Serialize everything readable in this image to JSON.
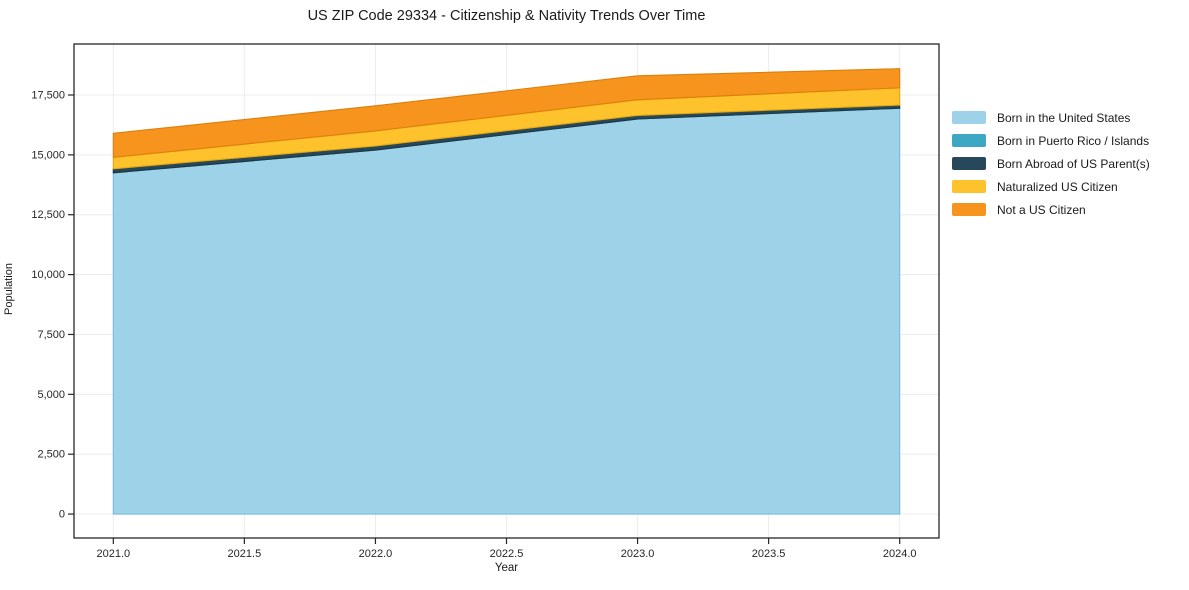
{
  "title": "US ZIP Code 29334 - Citizenship & Nativity Trends Over Time",
  "chart_data": {
    "type": "area",
    "stacked": true,
    "title": "US ZIP Code 29334 - Citizenship & Nativity Trends Over Time",
    "xlabel": "Year",
    "ylabel": "Population",
    "x": [
      2021,
      2022,
      2023,
      2024
    ],
    "series": [
      {
        "name": "Born in the United States",
        "color": "#9DD2E8",
        "edge": "#7BBCDA",
        "values": [
          14250,
          15200,
          16500,
          16950
        ]
      },
      {
        "name": "Born in Puerto Rico / Islands",
        "color": "#3EA8C4",
        "edge": "#2E8FA8",
        "values": [
          0,
          0,
          0,
          0
        ]
      },
      {
        "name": "Born Abroad of US Parent(s)",
        "color": "#27485A",
        "edge": "#1C3645",
        "values": [
          170,
          170,
          150,
          130
        ]
      },
      {
        "name": "Naturalized US Citizen",
        "color": "#FDC22C",
        "edge": "#E3A90F",
        "values": [
          480,
          630,
          650,
          720
        ]
      },
      {
        "name": "Not a US Citizen",
        "color": "#F6941E",
        "edge": "#DC7F0A",
        "values": [
          1000,
          1050,
          1000,
          800
        ]
      }
    ],
    "xlim": [
      2020.85,
      2024.15
    ],
    "ylim": [
      -1000,
      19630
    ],
    "xticks": {
      "values": [
        2021,
        2021.5,
        2022,
        2022.5,
        2023,
        2023.5,
        2024
      ],
      "labels": [
        "2021.0",
        "2021.5",
        "2022.0",
        "2022.5",
        "2023.0",
        "2023.5",
        "2024.0"
      ]
    },
    "yticks": {
      "values": [
        0,
        2500,
        5000,
        7500,
        10000,
        12500,
        15000,
        17500
      ],
      "labels": [
        "0",
        "2,500",
        "5,000",
        "7,500",
        "10,000",
        "12,500",
        "15,000",
        "17,500"
      ]
    },
    "grid": true,
    "grid_color": "#ececec",
    "spine_color": "#262626",
    "tick_color": "#262626",
    "legend_position": "right"
  }
}
